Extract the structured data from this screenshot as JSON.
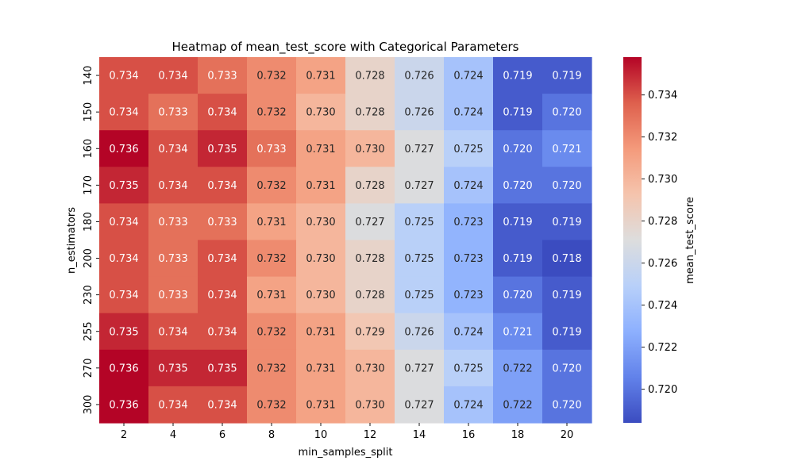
{
  "chart_data": {
    "type": "heatmap",
    "title": "Heatmap of mean_test_score with Categorical Parameters",
    "xlabel": "min_samples_split",
    "ylabel": "n_estimators",
    "colorbar_label": "mean_test_score",
    "colormap": "coolwarm",
    "x_categories": [
      "2",
      "4",
      "6",
      "8",
      "10",
      "12",
      "14",
      "16",
      "18",
      "20"
    ],
    "y_categories": [
      "140",
      "150",
      "160",
      "170",
      "180",
      "200",
      "230",
      "255",
      "270",
      "300"
    ],
    "values": [
      [
        0.734,
        0.734,
        0.733,
        0.732,
        0.731,
        0.728,
        0.726,
        0.724,
        0.719,
        0.719
      ],
      [
        0.734,
        0.733,
        0.734,
        0.732,
        0.73,
        0.728,
        0.726,
        0.724,
        0.719,
        0.72
      ],
      [
        0.736,
        0.734,
        0.735,
        0.733,
        0.731,
        0.73,
        0.727,
        0.725,
        0.72,
        0.721
      ],
      [
        0.735,
        0.734,
        0.734,
        0.732,
        0.731,
        0.728,
        0.727,
        0.724,
        0.72,
        0.72
      ],
      [
        0.734,
        0.733,
        0.733,
        0.731,
        0.73,
        0.727,
        0.725,
        0.723,
        0.719,
        0.719
      ],
      [
        0.734,
        0.733,
        0.734,
        0.732,
        0.73,
        0.728,
        0.725,
        0.723,
        0.719,
        0.718
      ],
      [
        0.734,
        0.733,
        0.734,
        0.731,
        0.73,
        0.728,
        0.725,
        0.723,
        0.72,
        0.719
      ],
      [
        0.735,
        0.734,
        0.734,
        0.732,
        0.731,
        0.729,
        0.726,
        0.724,
        0.721,
        0.719
      ],
      [
        0.736,
        0.735,
        0.735,
        0.732,
        0.731,
        0.73,
        0.727,
        0.725,
        0.722,
        0.72
      ],
      [
        0.736,
        0.734,
        0.734,
        0.732,
        0.731,
        0.73,
        0.727,
        0.724,
        0.722,
        0.72
      ]
    ],
    "vmin": 0.7184,
    "vmax": 0.7358,
    "colorbar_ticks": [
      "0.720",
      "0.722",
      "0.724",
      "0.726",
      "0.728",
      "0.730",
      "0.732",
      "0.734"
    ],
    "annotated": true,
    "grid": false
  }
}
